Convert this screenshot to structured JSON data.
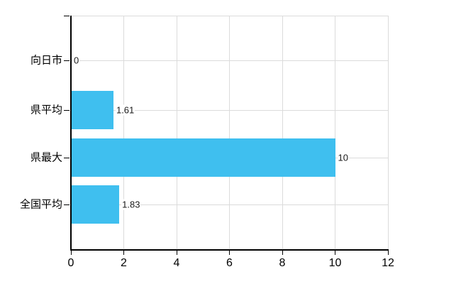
{
  "chart_data": {
    "type": "bar",
    "orientation": "horizontal",
    "title": "",
    "xlabel": "",
    "ylabel": "",
    "categories": [
      "向日市",
      "県平均",
      "県最大",
      "全国平均"
    ],
    "values": [
      0,
      1.61,
      10,
      1.83
    ],
    "value_labels": [
      "0",
      "1.61",
      "10",
      "1.83"
    ],
    "x_ticks": [
      0,
      2,
      4,
      6,
      8,
      10,
      12
    ],
    "x_tick_labels": [
      "0",
      "2",
      "4",
      "6",
      "8",
      "10",
      "12"
    ],
    "xlim": [
      0,
      12
    ],
    "grid": true,
    "legend": false,
    "bar_color": "#3FBFEF",
    "grid_color": "#DBDBDB",
    "axis_color": "#000000",
    "label_color": "#000000",
    "background_color": "#FFFFFF"
  }
}
